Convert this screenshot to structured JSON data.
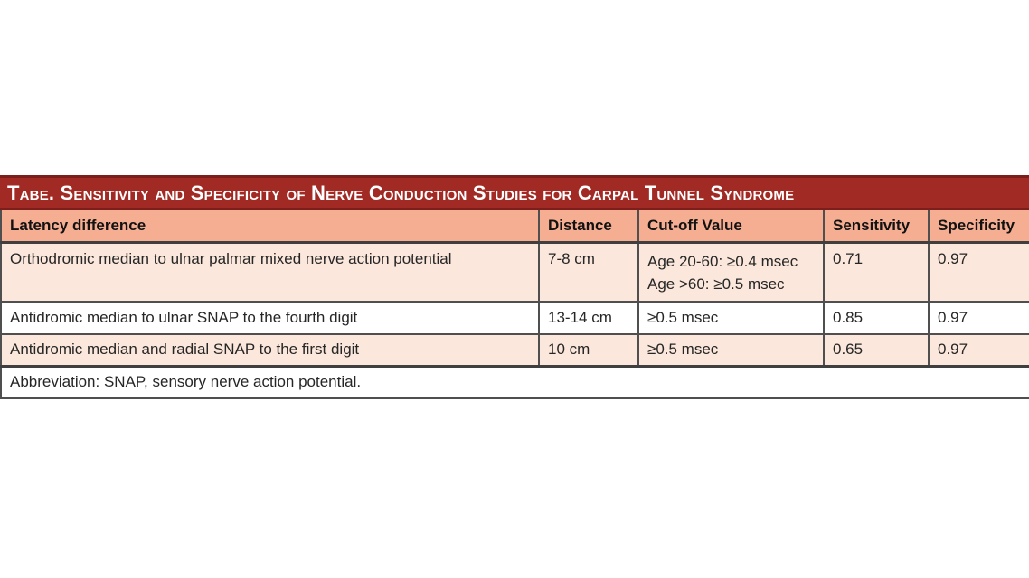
{
  "table": {
    "title": "Tabe. Sensitivity and Specificity of Nerve Conduction Studies for Carpal Tunnel Syndrome",
    "columns": [
      "Latency difference",
      "Distance",
      "Cut-off Value",
      "Sensitivity",
      "Specificity"
    ],
    "rows": [
      {
        "latency_difference": "Orthodromic median to ulnar palmar mixed nerve action potential",
        "distance": "7-8 cm",
        "cutoff_lines": [
          "Age 20-60: ≥0.4 msec",
          "Age >60: ≥0.5 msec"
        ],
        "sensitivity": "0.71",
        "specificity": "0.97"
      },
      {
        "latency_difference": "Antidromic median to ulnar SNAP to the fourth digit",
        "distance": "13-14 cm",
        "cutoff": "≥0.5 msec",
        "sensitivity": "0.85",
        "specificity": "0.97"
      },
      {
        "latency_difference": "Antidromic median and radial SNAP to the first digit",
        "distance": "10 cm",
        "cutoff": "≥0.5 msec",
        "sensitivity": "0.65",
        "specificity": "0.97"
      }
    ],
    "footnote": "Abbreviation: SNAP, sensory nerve action potential.",
    "colors": {
      "title_bar_bg": "#a12b24",
      "title_bar_border": "#7c1f1c",
      "title_text": "#ffffff",
      "header_row_bg": "#f6ae92",
      "stripe_row_bg": "#fbe7db",
      "white_row_bg": "#ffffff",
      "grid_border": "#4f4f4f",
      "body_text": "#262626"
    }
  }
}
